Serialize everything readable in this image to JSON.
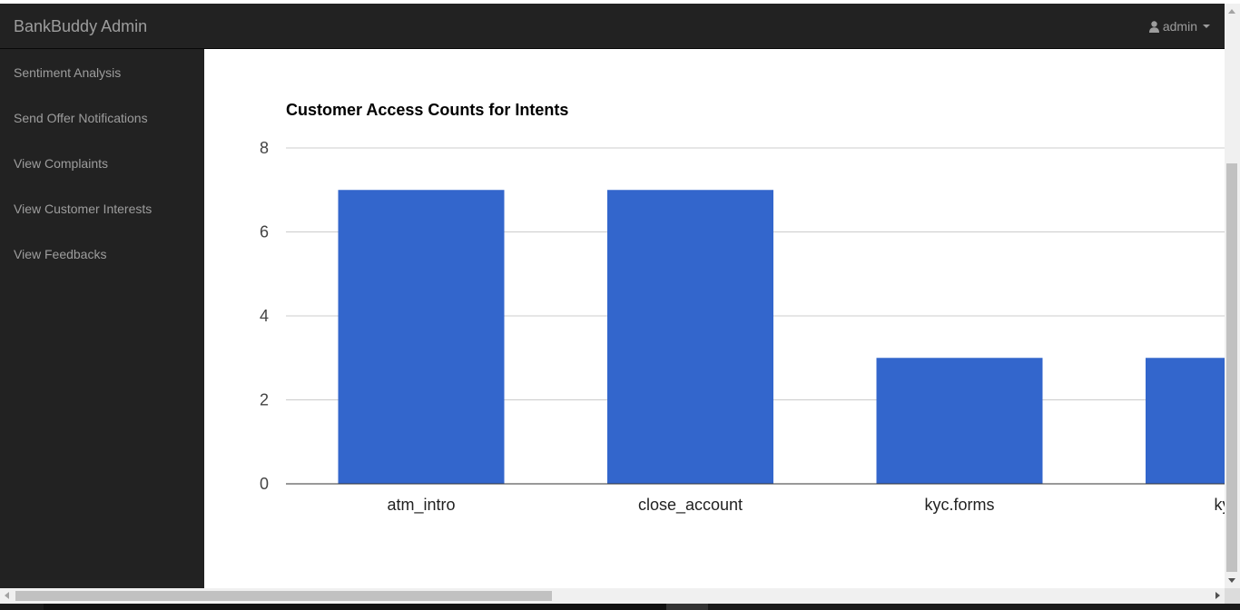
{
  "navbar": {
    "brand": "BankBuddy Admin",
    "user_label": "admin",
    "user_icon": "user-icon",
    "background": "#222222",
    "text_color": "#9d9d9d"
  },
  "sidebar": {
    "items": [
      {
        "label": "Sentiment Analysis"
      },
      {
        "label": "Send Offer Notifications"
      },
      {
        "label": "View Complaints"
      },
      {
        "label": "View Customer Interests"
      },
      {
        "label": "View Feedbacks"
      }
    ]
  },
  "chart_data": {
    "type": "bar",
    "title": "Customer Access Counts for Intents",
    "categories": [
      "atm_intro",
      "close_account",
      "kyc.forms",
      "kyc."
    ],
    "values": [
      7,
      7,
      3,
      3
    ],
    "ylim": [
      0,
      8
    ],
    "yticks": [
      0,
      2,
      4,
      6,
      8
    ],
    "grid": true,
    "bar_color": "#3366cc",
    "xlabel": "",
    "ylabel": ""
  }
}
